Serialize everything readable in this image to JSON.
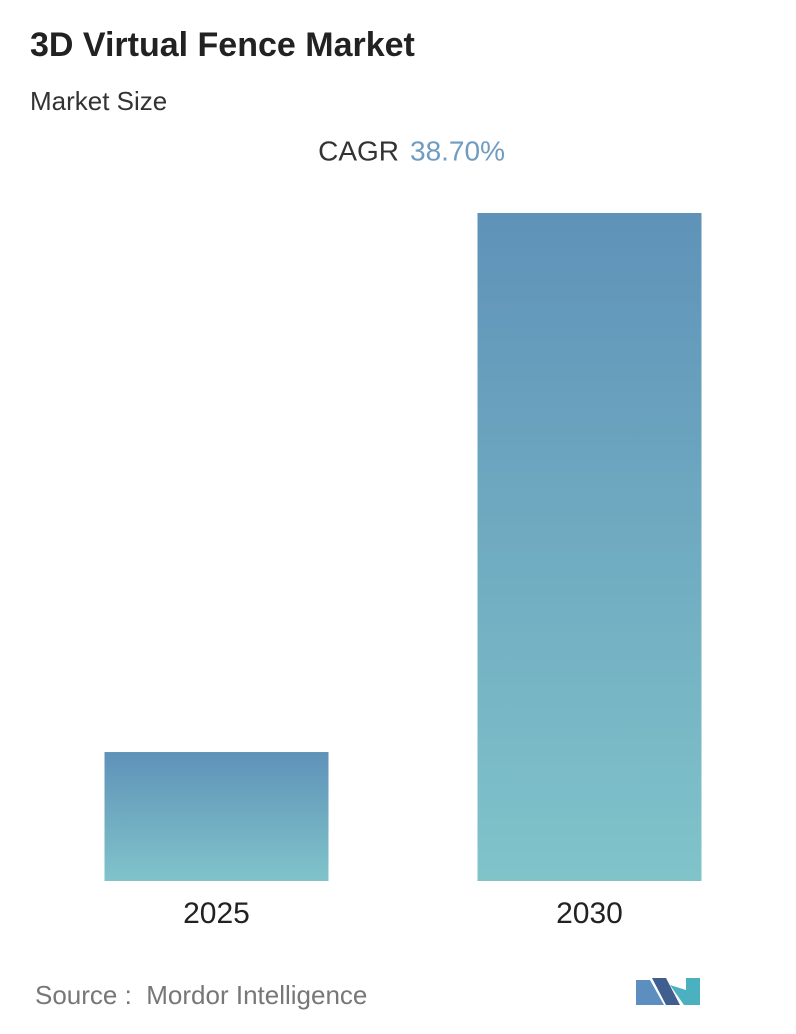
{
  "chart_data": {
    "type": "bar",
    "title": "3D Virtual Fence Market",
    "subtitle": "Market Size",
    "annotation_label": "CAGR",
    "annotation_value": "38.70%",
    "categories": [
      "2025",
      "2030"
    ],
    "values": [
      1,
      5.18
    ],
    "gradient": [
      "#5f92b8",
      "#80c4ca"
    ],
    "source": "Source :  Mordor Intelligence"
  }
}
